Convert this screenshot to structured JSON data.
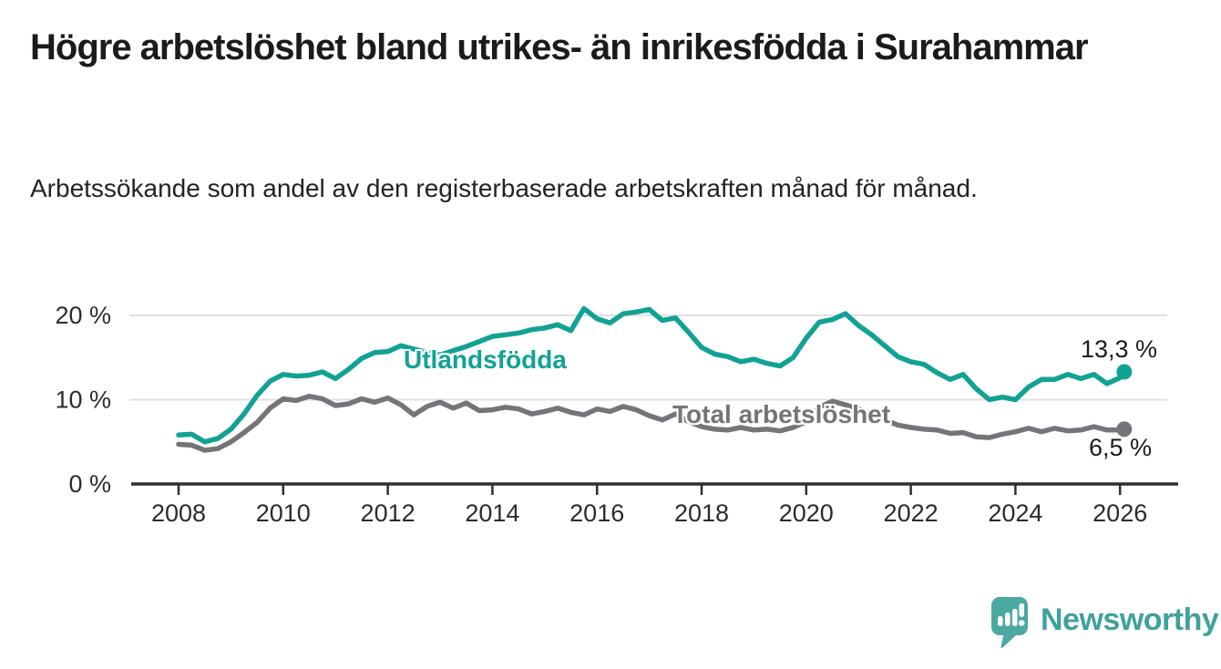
{
  "title": "Högre arbetslöshet bland utrikes- än inrikesfödda i Surahammar",
  "subtitle": "Arbetssökande som andel av den registerbaserade arbetskraften månad för månad.",
  "branding": {
    "logo_text": "Newsworthy"
  },
  "colors": {
    "foreign_born": "#12A294",
    "total": "#757479",
    "grid": "#E1E1E1",
    "axis": "#2F2F33",
    "tick_text": "#2c2c2c",
    "logo": "#4CA8A3",
    "background": "#ffffff"
  },
  "chart_data": {
    "type": "line",
    "title": "Högre arbetslöshet bland utrikes- än inrikesfödda i Surahammar",
    "subtitle": "Arbetssökande som andel av den registerbaserade arbetskraften månad för månad.",
    "xlabel": "",
    "ylabel": "",
    "x_range": [
      2007.9,
      2027.1
    ],
    "ylim": [
      0,
      22
    ],
    "grid": true,
    "legend_position": "inline-labels",
    "x_axis": {
      "ticks": [
        2008,
        2010,
        2012,
        2014,
        2016,
        2018,
        2020,
        2022,
        2024,
        2026
      ],
      "tick_labels": [
        "2008",
        "2010",
        "2012",
        "2014",
        "2016",
        "2018",
        "2020",
        "2022",
        "2024",
        "2026"
      ]
    },
    "y_axis": {
      "ticks": [
        0,
        10,
        20
      ],
      "tick_labels": [
        "0 %",
        "10 %",
        "20 %"
      ]
    },
    "series": [
      {
        "id": "utlandsfodda",
        "name": "Utlandsfödda",
        "color": "#12A294",
        "end_label": "13,3 %",
        "end_value": 13.3,
        "points": [
          [
            2008,
            5.8
          ],
          [
            2008.25,
            5.9
          ],
          [
            2008.5,
            5.0
          ],
          [
            2008.75,
            5.4
          ],
          [
            2009,
            6.5
          ],
          [
            2009.25,
            8.3
          ],
          [
            2009.5,
            10.5
          ],
          [
            2009.75,
            12.2
          ],
          [
            2010,
            13.0
          ],
          [
            2010.25,
            12.8
          ],
          [
            2010.5,
            12.9
          ],
          [
            2010.75,
            13.3
          ],
          [
            2011,
            12.5
          ],
          [
            2011.25,
            13.6
          ],
          [
            2011.5,
            14.9
          ],
          [
            2011.75,
            15.6
          ],
          [
            2012,
            15.7
          ],
          [
            2012.25,
            16.4
          ],
          [
            2012.5,
            16.0
          ],
          [
            2012.75,
            15.6
          ],
          [
            2013,
            15.3
          ],
          [
            2013.25,
            15.8
          ],
          [
            2013.5,
            16.3
          ],
          [
            2013.75,
            16.9
          ],
          [
            2014,
            17.5
          ],
          [
            2014.25,
            17.7
          ],
          [
            2014.5,
            17.9
          ],
          [
            2014.75,
            18.3
          ],
          [
            2015,
            18.5
          ],
          [
            2015.25,
            18.9
          ],
          [
            2015.5,
            18.2
          ],
          [
            2015.75,
            20.8
          ],
          [
            2016,
            19.6
          ],
          [
            2016.25,
            19.1
          ],
          [
            2016.5,
            20.2
          ],
          [
            2016.75,
            20.4
          ],
          [
            2017,
            20.7
          ],
          [
            2017.25,
            19.4
          ],
          [
            2017.5,
            19.7
          ],
          [
            2017.75,
            18.0
          ],
          [
            2018,
            16.2
          ],
          [
            2018.25,
            15.4
          ],
          [
            2018.5,
            15.1
          ],
          [
            2018.75,
            14.5
          ],
          [
            2019,
            14.8
          ],
          [
            2019.25,
            14.3
          ],
          [
            2019.5,
            14.0
          ],
          [
            2019.75,
            15.0
          ],
          [
            2020,
            17.3
          ],
          [
            2020.25,
            19.2
          ],
          [
            2020.5,
            19.5
          ],
          [
            2020.75,
            20.2
          ],
          [
            2021,
            18.8
          ],
          [
            2021.25,
            17.7
          ],
          [
            2021.5,
            16.4
          ],
          [
            2021.75,
            15.1
          ],
          [
            2022,
            14.5
          ],
          [
            2022.25,
            14.2
          ],
          [
            2022.5,
            13.2
          ],
          [
            2022.75,
            12.4
          ],
          [
            2023,
            13.0
          ],
          [
            2023.25,
            11.3
          ],
          [
            2023.5,
            10.0
          ],
          [
            2023.75,
            10.3
          ],
          [
            2024,
            10.0
          ],
          [
            2024.25,
            11.5
          ],
          [
            2024.5,
            12.4
          ],
          [
            2024.75,
            12.4
          ],
          [
            2025,
            13.0
          ],
          [
            2025.25,
            12.5
          ],
          [
            2025.5,
            13.0
          ],
          [
            2025.75,
            11.9
          ],
          [
            2026,
            12.6
          ],
          [
            2026.08,
            13.3
          ]
        ]
      },
      {
        "id": "total-arbetsloshet",
        "name": "Total arbetslöshet",
        "color": "#757479",
        "end_label": "6,5 %",
        "end_value": 6.5,
        "points": [
          [
            2008,
            4.7
          ],
          [
            2008.25,
            4.6
          ],
          [
            2008.5,
            4.0
          ],
          [
            2008.75,
            4.2
          ],
          [
            2009,
            5.0
          ],
          [
            2009.25,
            6.1
          ],
          [
            2009.5,
            7.3
          ],
          [
            2009.75,
            9.0
          ],
          [
            2010,
            10.1
          ],
          [
            2010.25,
            9.9
          ],
          [
            2010.5,
            10.4
          ],
          [
            2010.75,
            10.1
          ],
          [
            2011,
            9.3
          ],
          [
            2011.25,
            9.5
          ],
          [
            2011.5,
            10.1
          ],
          [
            2011.75,
            9.7
          ],
          [
            2012,
            10.2
          ],
          [
            2012.25,
            9.4
          ],
          [
            2012.5,
            8.2
          ],
          [
            2012.75,
            9.2
          ],
          [
            2013,
            9.7
          ],
          [
            2013.25,
            9.0
          ],
          [
            2013.5,
            9.6
          ],
          [
            2013.75,
            8.7
          ],
          [
            2014,
            8.8
          ],
          [
            2014.25,
            9.1
          ],
          [
            2014.5,
            8.9
          ],
          [
            2014.75,
            8.3
          ],
          [
            2015,
            8.6
          ],
          [
            2015.25,
            9.0
          ],
          [
            2015.5,
            8.5
          ],
          [
            2015.75,
            8.2
          ],
          [
            2016,
            8.9
          ],
          [
            2016.25,
            8.6
          ],
          [
            2016.5,
            9.2
          ],
          [
            2016.75,
            8.8
          ],
          [
            2017,
            8.1
          ],
          [
            2017.25,
            7.6
          ],
          [
            2017.5,
            8.3
          ],
          [
            2017.75,
            7.4
          ],
          [
            2018,
            6.8
          ],
          [
            2018.25,
            6.5
          ],
          [
            2018.5,
            6.4
          ],
          [
            2018.75,
            6.7
          ],
          [
            2019,
            6.4
          ],
          [
            2019.25,
            6.5
          ],
          [
            2019.5,
            6.3
          ],
          [
            2019.75,
            6.7
          ],
          [
            2020,
            7.4
          ],
          [
            2020.25,
            9.1
          ],
          [
            2020.5,
            9.8
          ],
          [
            2020.75,
            9.4
          ],
          [
            2021,
            8.9
          ],
          [
            2021.25,
            8.3
          ],
          [
            2021.5,
            7.6
          ],
          [
            2021.75,
            7.0
          ],
          [
            2022,
            6.7
          ],
          [
            2022.25,
            6.5
          ],
          [
            2022.5,
            6.4
          ],
          [
            2022.75,
            6.0
          ],
          [
            2023,
            6.1
          ],
          [
            2023.25,
            5.6
          ],
          [
            2023.5,
            5.5
          ],
          [
            2023.75,
            5.9
          ],
          [
            2024,
            6.2
          ],
          [
            2024.25,
            6.6
          ],
          [
            2024.5,
            6.2
          ],
          [
            2024.75,
            6.6
          ],
          [
            2025,
            6.3
          ],
          [
            2025.25,
            6.4
          ],
          [
            2025.5,
            6.8
          ],
          [
            2025.75,
            6.4
          ],
          [
            2026,
            6.4
          ],
          [
            2026.08,
            6.5
          ]
        ]
      }
    ]
  }
}
